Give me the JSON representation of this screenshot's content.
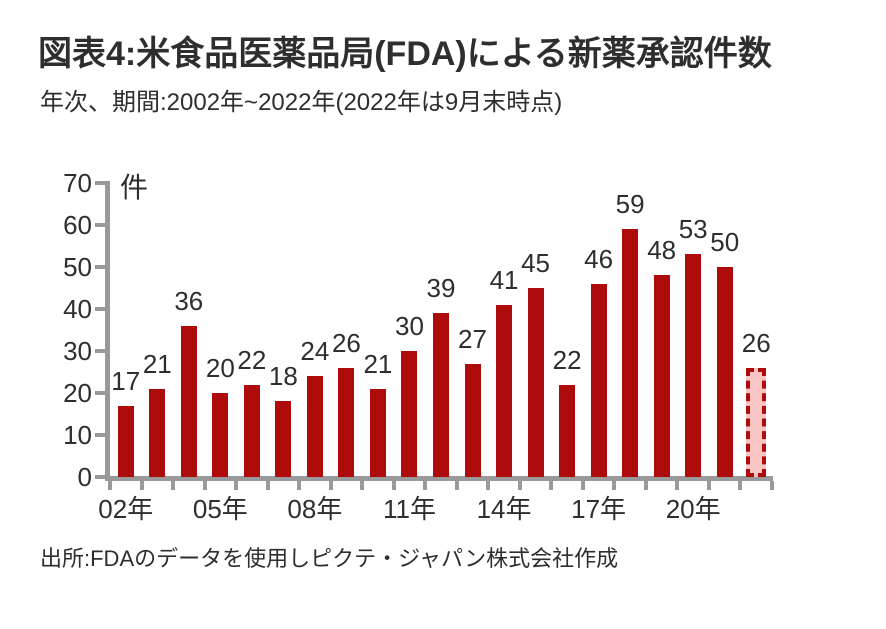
{
  "header": {
    "title": "図表4:米食品医薬品局(FDA)による新薬承認件数",
    "subtitle": "年次、期間:2002年~2022年(2022年は9月末時点)"
  },
  "source": "出所:FDAのデータを使用しピクテ・ジャパン株式会社作成",
  "chart_data": {
    "type": "bar",
    "title": "図表4:米食品医薬品局(FDA)による新薬承認件数",
    "subtitle": "年次、期間:2002年~2022年(2022年は9月末時点)",
    "unit_label": "件",
    "categories": [
      "2002",
      "2003",
      "2004",
      "2005",
      "2006",
      "2007",
      "2008",
      "2009",
      "2010",
      "2011",
      "2012",
      "2013",
      "2014",
      "2015",
      "2016",
      "2017",
      "2018",
      "2019",
      "2020",
      "2021",
      "2022"
    ],
    "values": [
      17,
      21,
      36,
      20,
      22,
      18,
      24,
      26,
      21,
      30,
      39,
      27,
      41,
      45,
      22,
      46,
      59,
      48,
      53,
      50,
      26
    ],
    "ylim": [
      0,
      70
    ],
    "y_ticks": [
      0,
      10,
      20,
      30,
      40,
      50,
      60,
      70
    ],
    "x_tick_labels": [
      {
        "index": 0,
        "text": "02年"
      },
      {
        "index": 3,
        "text": "05年"
      },
      {
        "index": 6,
        "text": "08年"
      },
      {
        "index": 9,
        "text": "11年"
      },
      {
        "index": 12,
        "text": "14年"
      },
      {
        "index": 15,
        "text": "17年"
      },
      {
        "index": 18,
        "text": "20年"
      }
    ],
    "highlight_last_bar": true,
    "data_labels": true,
    "grid": false,
    "legend": false,
    "colors": {
      "bar": "#ae0c0c",
      "highlight_fill": "#f8c4c4",
      "highlight_border": "#ae0c0c",
      "axis": "#999999",
      "text": "#2e2e2e"
    }
  }
}
